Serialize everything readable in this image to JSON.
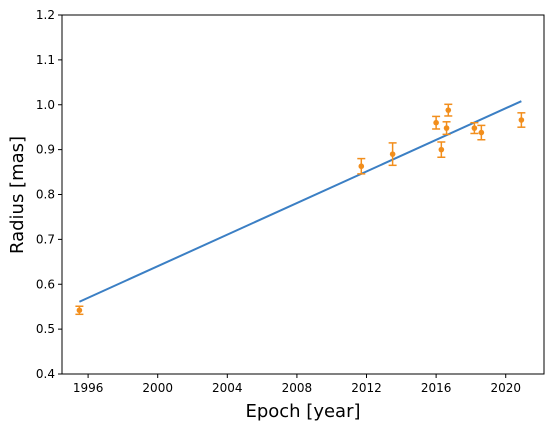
{
  "chart_data": {
    "type": "scatter",
    "xlabel": "Epoch [year]",
    "ylabel": "Radius [mas]",
    "xlim": [
      1994.5,
      2022.2
    ],
    "ylim": [
      0.4,
      1.2
    ],
    "xticks": [
      1996,
      2000,
      2004,
      2008,
      2012,
      2016,
      2020
    ],
    "yticks": [
      0.4,
      0.5,
      0.6,
      0.7,
      0.8,
      0.9,
      1.0,
      1.1,
      1.2
    ],
    "ytick_labels": [
      "0.4",
      "0.5",
      "0.6",
      "0.7",
      "0.8",
      "0.9",
      "1.0",
      "1.1",
      "1.2"
    ],
    "grid": false,
    "series": [
      {
        "kind": "fit-line",
        "color": "#3b7fc4",
        "x": [
          1995.5,
          2020.9
        ],
        "y": [
          0.561,
          1.008
        ]
      },
      {
        "kind": "points-with-errorbars",
        "color": "#f28e1c",
        "points": [
          {
            "x": 1995.5,
            "y": 0.542,
            "err": 0.009
          },
          {
            "x": 2011.7,
            "y": 0.863,
            "err": 0.017
          },
          {
            "x": 2013.5,
            "y": 0.89,
            "err": 0.025
          },
          {
            "x": 2016.0,
            "y": 0.96,
            "err": 0.014
          },
          {
            "x": 2016.3,
            "y": 0.9,
            "err": 0.017
          },
          {
            "x": 2016.6,
            "y": 0.948,
            "err": 0.014
          },
          {
            "x": 2016.7,
            "y": 0.988,
            "err": 0.013
          },
          {
            "x": 2018.2,
            "y": 0.948,
            "err": 0.012
          },
          {
            "x": 2018.6,
            "y": 0.938,
            "err": 0.016
          },
          {
            "x": 2020.9,
            "y": 0.966,
            "err": 0.016
          }
        ]
      }
    ]
  }
}
